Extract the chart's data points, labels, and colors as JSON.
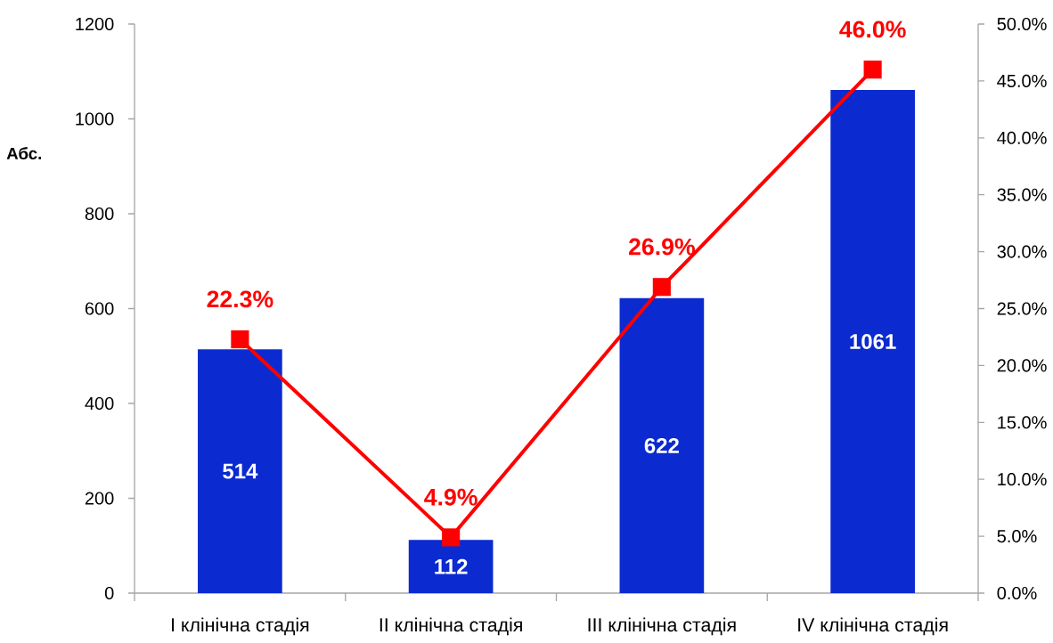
{
  "chart_data": {
    "type": "bar",
    "ylabel": "Абс.",
    "categories": [
      "I клінічна стадія",
      "II клінічна стадія",
      "III клінічна стадія",
      "IV клінічна стадія"
    ],
    "series": [
      {
        "color": "#0b2bd0",
        "values": [
          514,
          112,
          622,
          1061
        ],
        "value_labels": [
          "514",
          "112",
          "622",
          "1061"
        ]
      },
      {
        "type": "line",
        "axis": "y2",
        "color": "#ff0000",
        "marker": "square",
        "line_style": "solid",
        "values": [
          22.3,
          4.9,
          26.9,
          46.0
        ],
        "value_labels": [
          "22.3%",
          "4.9%",
          "26.9%",
          "46.0%"
        ]
      }
    ],
    "ylim": [
      0,
      1200
    ],
    "yticks": [
      0,
      200,
      400,
      600,
      800,
      1000,
      1200
    ],
    "y2lim": [
      0,
      50
    ],
    "y2ticks": [
      {
        "value": 0,
        "label": "0.0%"
      },
      {
        "value": 5,
        "label": "5.0%"
      },
      {
        "value": 10,
        "label": "10.0%"
      },
      {
        "value": 15,
        "label": "15.0%"
      },
      {
        "value": 20,
        "label": "20.0%"
      },
      {
        "value": 25,
        "label": "25.0%"
      },
      {
        "value": 30,
        "label": "30.0%"
      },
      {
        "value": 35,
        "label": "35.0%"
      },
      {
        "value": 40,
        "label": "40.0%"
      },
      {
        "value": 45,
        "label": "45.0%"
      },
      {
        "value": 50,
        "label": "50.0%"
      }
    ]
  }
}
